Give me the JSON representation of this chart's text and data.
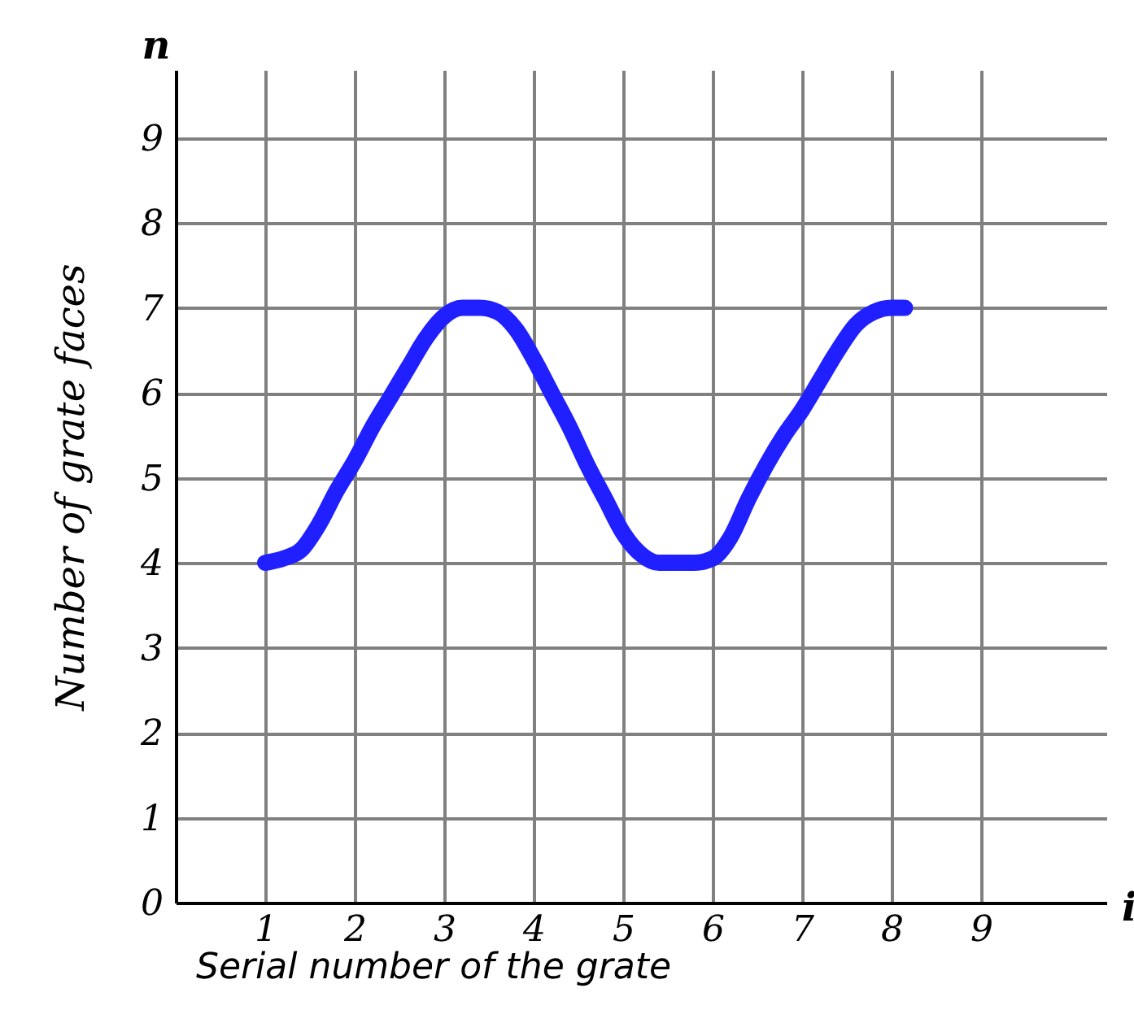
{
  "chart_data": {
    "type": "line",
    "xlabel": "Serial number of the grate",
    "ylabel": "Number of grate faces",
    "annotations": [
      "n",
      "i"
    ],
    "x": [
      1,
      1.2,
      1.4,
      1.6,
      1.8,
      2,
      2.2,
      2.4,
      2.6,
      2.8,
      3,
      3.2,
      3.4,
      3.6,
      3.8,
      4,
      4.2,
      4.4,
      4.6,
      4.8,
      5,
      5.2,
      5.4,
      5.6,
      5.8,
      6,
      6.2,
      6.4,
      6.6,
      6.8,
      7,
      7.2,
      7.4,
      7.6,
      7.8,
      8,
      8.15
    ],
    "series": [
      {
        "color": "#1f1fff",
        "values": [
          4,
          4.05,
          4.15,
          4.45,
          4.85,
          5.2,
          5.6,
          5.95,
          6.3,
          6.65,
          6.9,
          7,
          7,
          6.95,
          6.75,
          6.4,
          6,
          5.6,
          5.15,
          4.75,
          4.35,
          4.1,
          4,
          4,
          4,
          4.05,
          4.3,
          4.75,
          5.15,
          5.5,
          5.8,
          6.15,
          6.5,
          6.8,
          6.95,
          7,
          7
        ]
      }
    ],
    "xlim": [
      0,
      10.4
    ],
    "ylim": [
      0,
      9.8
    ],
    "xticks": [
      1,
      2,
      3,
      4,
      5,
      6,
      7,
      8,
      9
    ],
    "yticks": [
      0,
      1,
      2,
      3,
      4,
      5,
      6,
      7,
      8,
      9
    ],
    "grid": true,
    "marker": "none",
    "line_style": "solid"
  }
}
